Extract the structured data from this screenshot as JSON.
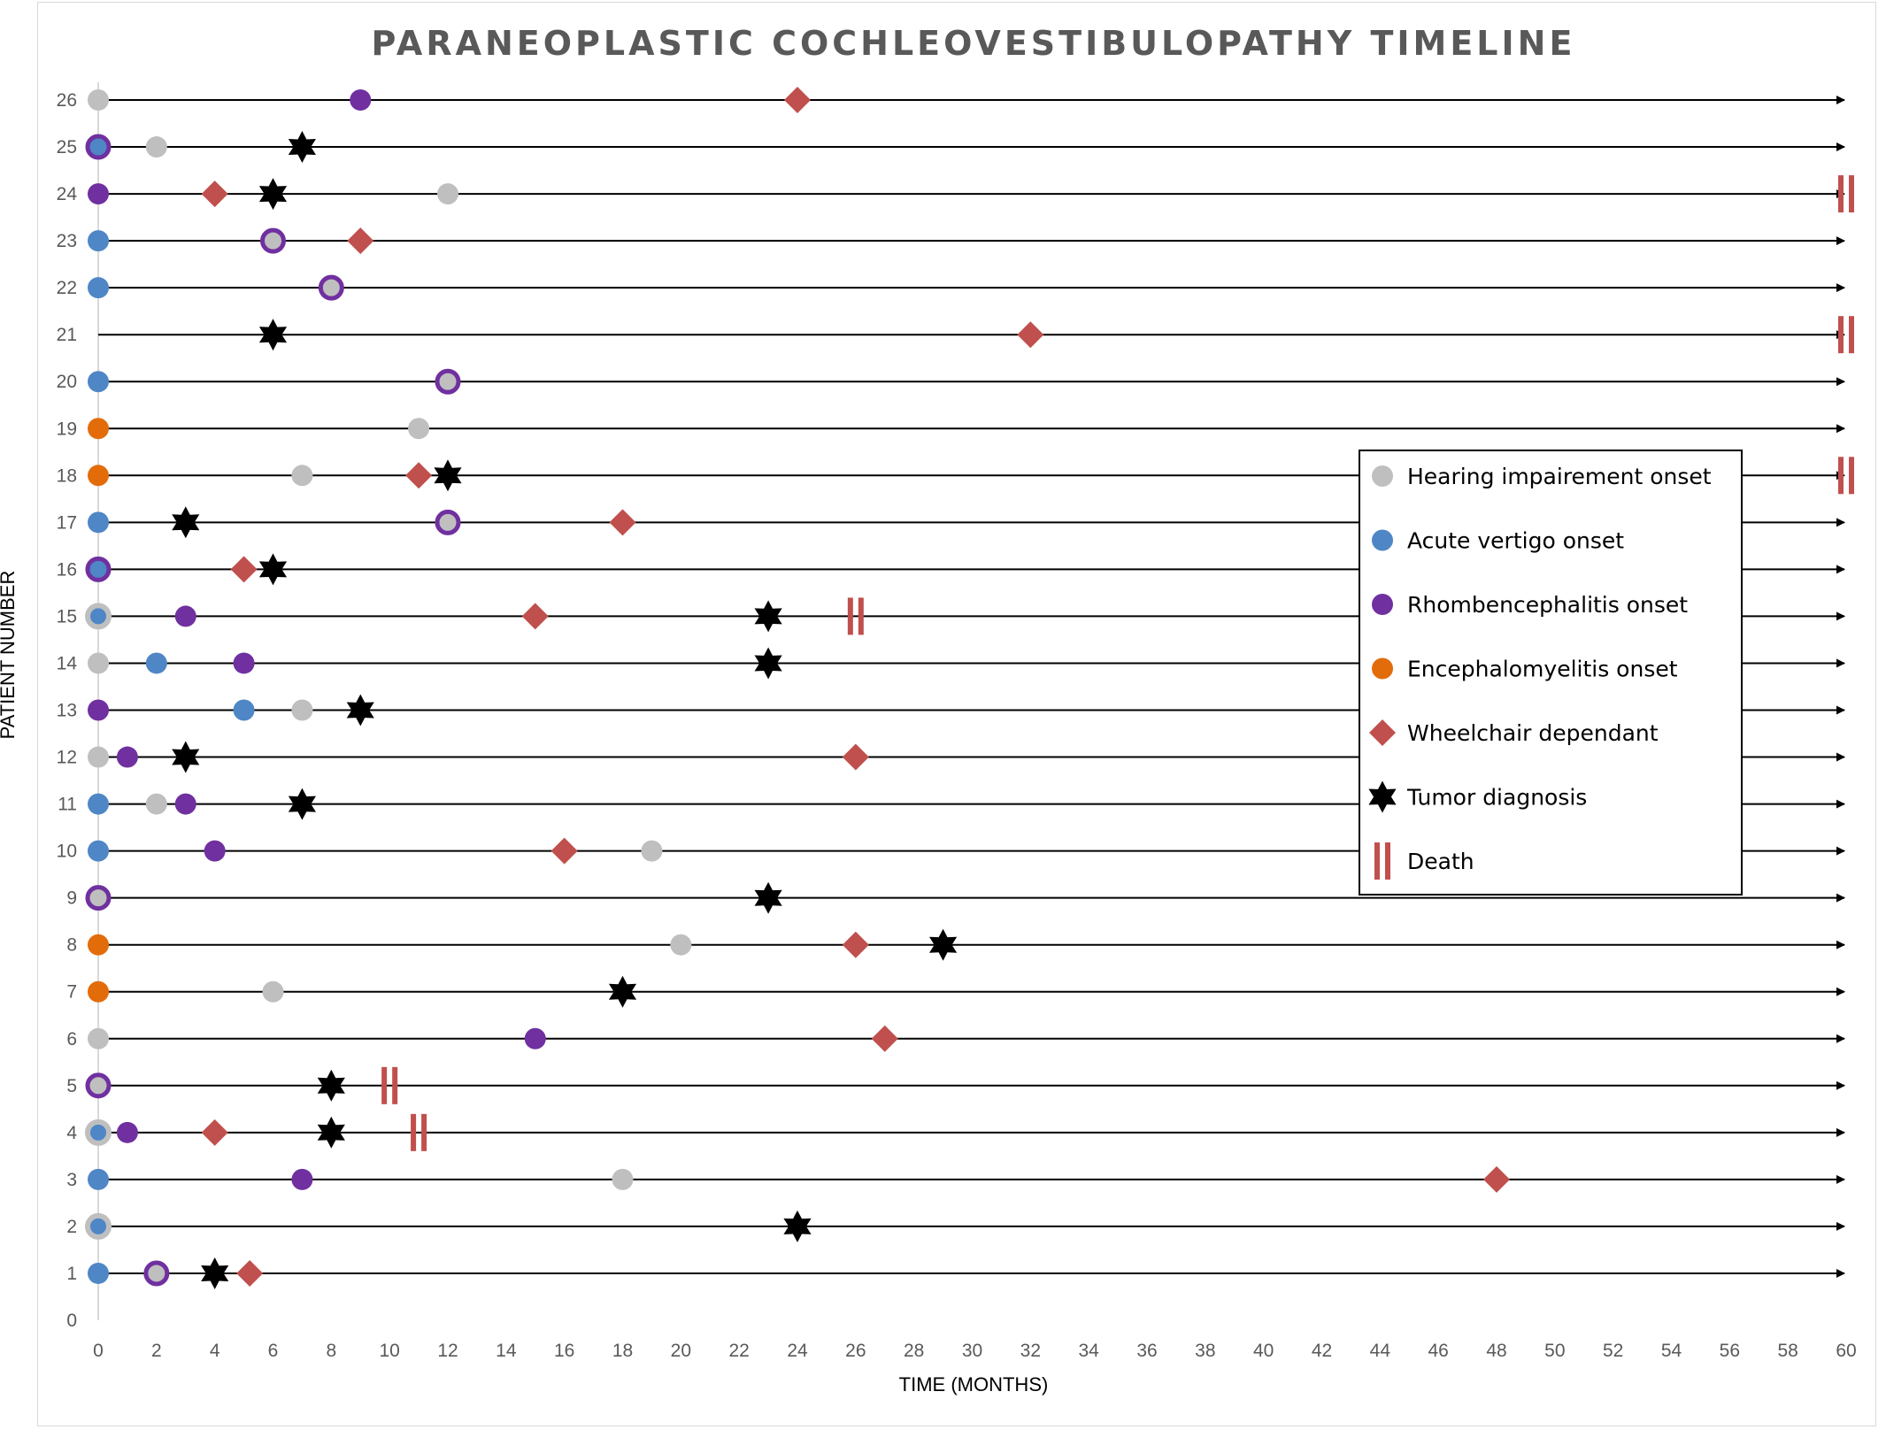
{
  "chart_data": {
    "type": "timeline",
    "title": "PARANEOPLASTIC COCHLEOVESTIBULOPATHY TIMELINE",
    "xlabel": "TIME (MONTHS)",
    "ylabel": "PATIENT NUMBER",
    "xlim": [
      0,
      60
    ],
    "ylim": [
      0,
      26
    ],
    "x_ticks": [
      0,
      2,
      4,
      6,
      8,
      10,
      12,
      14,
      16,
      18,
      20,
      22,
      24,
      26,
      28,
      30,
      32,
      34,
      36,
      38,
      40,
      42,
      44,
      46,
      48,
      50,
      52,
      54,
      56,
      58,
      60
    ],
    "y_ticks": [
      0,
      1,
      2,
      3,
      4,
      5,
      6,
      7,
      8,
      9,
      10,
      11,
      12,
      13,
      14,
      15,
      16,
      17,
      18,
      19,
      20,
      21,
      22,
      23,
      24,
      25,
      26
    ],
    "legend_position": "right",
    "colors": {
      "hearing": "#bfbfbf",
      "vertigo": "#4f86c6",
      "rhomb": "#7030a0",
      "enceph": "#e36c0a",
      "wheelchair": "#c0504d",
      "tumor": "#000000",
      "death": "#c0504d"
    },
    "legend": [
      {
        "key": "hearing",
        "label": "Hearing impairement onset"
      },
      {
        "key": "vertigo",
        "label": "Acute vertigo onset"
      },
      {
        "key": "rhomb",
        "label": "Rhombencephalitis onset"
      },
      {
        "key": "enceph",
        "label": "Encephalomyelitis onset"
      },
      {
        "key": "wheelchair",
        "label": "Wheelchair dependant"
      },
      {
        "key": "tumor",
        "label": "Tumor diagnosis"
      },
      {
        "key": "death",
        "label": "Death"
      }
    ],
    "patients": [
      {
        "id": 1,
        "events": [
          {
            "type": "vertigo",
            "x": 0
          },
          {
            "type": "rhomb_hearing",
            "x": 2
          },
          {
            "type": "tumor",
            "x": 4
          },
          {
            "type": "wheelchair",
            "x": 5.2
          }
        ]
      },
      {
        "id": 2,
        "events": [
          {
            "type": "hearing_vertigo",
            "x": 0
          },
          {
            "type": "tumor",
            "x": 24
          }
        ]
      },
      {
        "id": 3,
        "events": [
          {
            "type": "vertigo",
            "x": 0
          },
          {
            "type": "rhomb",
            "x": 7
          },
          {
            "type": "hearing",
            "x": 18
          },
          {
            "type": "wheelchair",
            "x": 48
          }
        ]
      },
      {
        "id": 4,
        "events": [
          {
            "type": "hearing_vertigo",
            "x": 0
          },
          {
            "type": "rhomb",
            "x": 1
          },
          {
            "type": "wheelchair",
            "x": 4
          },
          {
            "type": "tumor",
            "x": 8
          },
          {
            "type": "death",
            "x": 11
          }
        ]
      },
      {
        "id": 5,
        "events": [
          {
            "type": "rhomb_hearing",
            "x": 0
          },
          {
            "type": "tumor",
            "x": 8
          },
          {
            "type": "death",
            "x": 10
          }
        ]
      },
      {
        "id": 6,
        "events": [
          {
            "type": "hearing",
            "x": 0
          },
          {
            "type": "rhomb",
            "x": 15
          },
          {
            "type": "wheelchair",
            "x": 27
          }
        ]
      },
      {
        "id": 7,
        "events": [
          {
            "type": "enceph",
            "x": 0
          },
          {
            "type": "hearing",
            "x": 6
          },
          {
            "type": "tumor",
            "x": 18
          }
        ]
      },
      {
        "id": 8,
        "events": [
          {
            "type": "enceph",
            "x": 0
          },
          {
            "type": "hearing",
            "x": 20
          },
          {
            "type": "wheelchair",
            "x": 26
          },
          {
            "type": "tumor",
            "x": 29
          }
        ]
      },
      {
        "id": 9,
        "events": [
          {
            "type": "rhomb_hearing",
            "x": 0
          },
          {
            "type": "tumor",
            "x": 23
          }
        ]
      },
      {
        "id": 10,
        "events": [
          {
            "type": "vertigo",
            "x": 0
          },
          {
            "type": "rhomb",
            "x": 4
          },
          {
            "type": "wheelchair",
            "x": 16
          },
          {
            "type": "hearing",
            "x": 19
          }
        ]
      },
      {
        "id": 11,
        "events": [
          {
            "type": "vertigo",
            "x": 0
          },
          {
            "type": "hearing",
            "x": 2
          },
          {
            "type": "rhomb",
            "x": 3
          },
          {
            "type": "tumor",
            "x": 7
          }
        ]
      },
      {
        "id": 12,
        "events": [
          {
            "type": "hearing",
            "x": 0
          },
          {
            "type": "rhomb",
            "x": 1
          },
          {
            "type": "tumor",
            "x": 3
          },
          {
            "type": "wheelchair",
            "x": 26
          }
        ]
      },
      {
        "id": 13,
        "events": [
          {
            "type": "rhomb",
            "x": 0
          },
          {
            "type": "vertigo",
            "x": 5
          },
          {
            "type": "hearing",
            "x": 7
          },
          {
            "type": "tumor",
            "x": 9
          }
        ]
      },
      {
        "id": 14,
        "events": [
          {
            "type": "hearing",
            "x": 0
          },
          {
            "type": "vertigo",
            "x": 2
          },
          {
            "type": "rhomb",
            "x": 5
          },
          {
            "type": "tumor",
            "x": 23
          }
        ]
      },
      {
        "id": 15,
        "events": [
          {
            "type": "hearing_vertigo",
            "x": 0
          },
          {
            "type": "rhomb",
            "x": 3
          },
          {
            "type": "wheelchair",
            "x": 15
          },
          {
            "type": "tumor",
            "x": 23
          },
          {
            "type": "death",
            "x": 26
          }
        ]
      },
      {
        "id": 16,
        "events": [
          {
            "type": "rhomb_vertigo",
            "x": 0
          },
          {
            "type": "wheelchair",
            "x": 5
          },
          {
            "type": "tumor",
            "x": 6
          }
        ]
      },
      {
        "id": 17,
        "events": [
          {
            "type": "vertigo",
            "x": 0
          },
          {
            "type": "tumor",
            "x": 3
          },
          {
            "type": "rhomb_hearing",
            "x": 12
          },
          {
            "type": "wheelchair",
            "x": 18
          }
        ]
      },
      {
        "id": 18,
        "events": [
          {
            "type": "enceph",
            "x": 0
          },
          {
            "type": "hearing",
            "x": 7
          },
          {
            "type": "wheelchair",
            "x": 11
          },
          {
            "type": "tumor",
            "x": 12
          },
          {
            "type": "death",
            "x": 60
          }
        ]
      },
      {
        "id": 19,
        "events": [
          {
            "type": "enceph",
            "x": 0
          },
          {
            "type": "hearing",
            "x": 11
          }
        ]
      },
      {
        "id": 20,
        "events": [
          {
            "type": "vertigo",
            "x": 0
          },
          {
            "type": "rhomb_hearing",
            "x": 12
          }
        ]
      },
      {
        "id": 21,
        "events": [
          {
            "type": "tumor",
            "x": 6
          },
          {
            "type": "wheelchair",
            "x": 32
          },
          {
            "type": "death",
            "x": 60
          }
        ]
      },
      {
        "id": 22,
        "events": [
          {
            "type": "vertigo",
            "x": 0
          },
          {
            "type": "rhomb_hearing",
            "x": 8
          }
        ]
      },
      {
        "id": 23,
        "events": [
          {
            "type": "vertigo",
            "x": 0
          },
          {
            "type": "rhomb_hearing",
            "x": 6
          },
          {
            "type": "wheelchair",
            "x": 9
          }
        ]
      },
      {
        "id": 24,
        "events": [
          {
            "type": "rhomb",
            "x": 0
          },
          {
            "type": "wheelchair",
            "x": 4
          },
          {
            "type": "tumor",
            "x": 6
          },
          {
            "type": "hearing",
            "x": 12
          },
          {
            "type": "death",
            "x": 60
          }
        ]
      },
      {
        "id": 25,
        "events": [
          {
            "type": "rhomb_vertigo",
            "x": 0
          },
          {
            "type": "hearing",
            "x": 2
          },
          {
            "type": "tumor",
            "x": 7
          }
        ]
      },
      {
        "id": 26,
        "events": [
          {
            "type": "hearing",
            "x": 0
          },
          {
            "type": "rhomb",
            "x": 9
          },
          {
            "type": "wheelchair",
            "x": 24
          }
        ]
      }
    ]
  }
}
